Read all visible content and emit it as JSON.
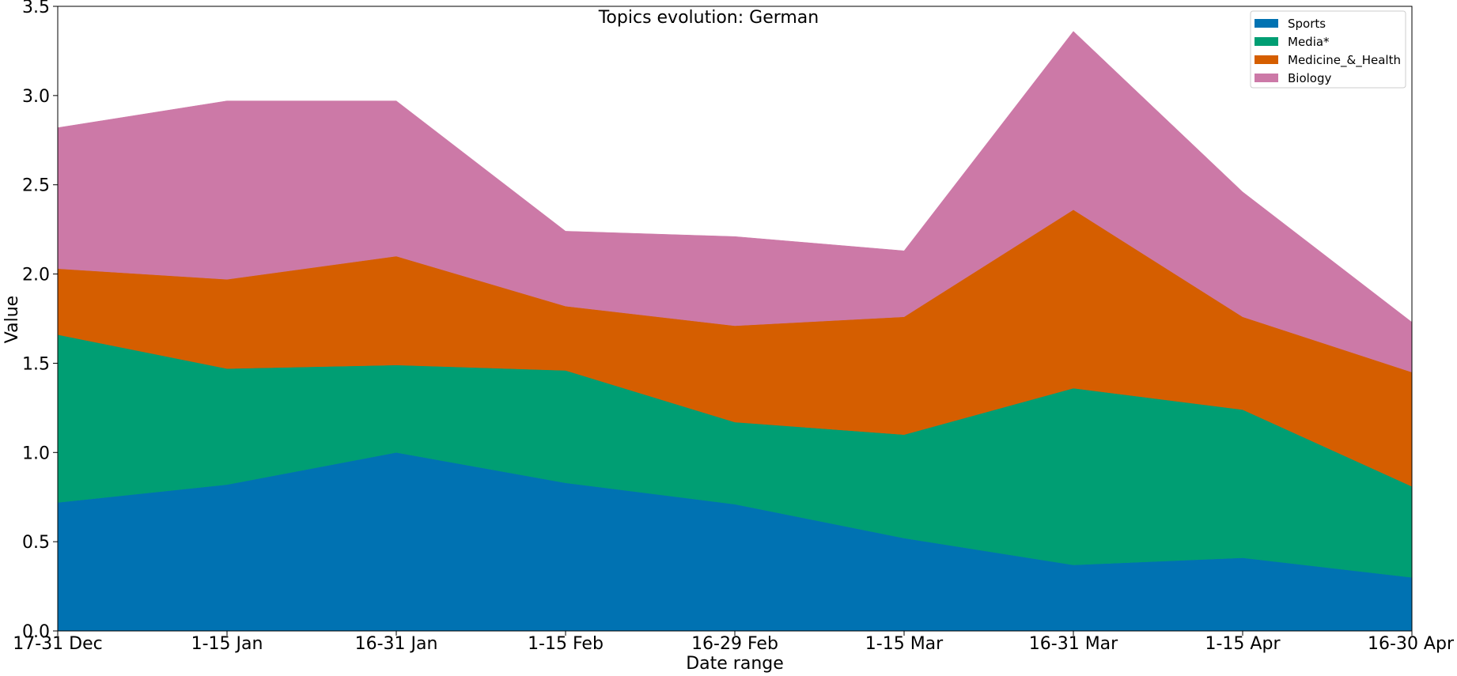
{
  "chart_data": {
    "type": "area",
    "stacked": true,
    "title": "Topics evolution: German",
    "xlabel": "Date range",
    "ylabel": "Value",
    "categories": [
      "17-31 Dec",
      "1-15 Jan",
      "16-31 Jan",
      "1-15 Feb",
      "16-29 Feb",
      "1-15 Mar",
      "16-31 Mar",
      "1-15 Apr",
      "16-30 Apr"
    ],
    "ylim": [
      0,
      3.5
    ],
    "yticks": [
      "0.0",
      "0.5",
      "1.0",
      "1.5",
      "2.0",
      "2.5",
      "3.0",
      "3.5"
    ],
    "legend_position": "top-right",
    "grid": false,
    "series": [
      {
        "name": "Sports",
        "color": "#0072b2",
        "values": [
          0.72,
          0.82,
          1.0,
          0.83,
          0.71,
          0.52,
          0.37,
          0.41,
          0.3
        ]
      },
      {
        "name": "Media*",
        "color": "#009e73",
        "values": [
          0.94,
          0.65,
          0.49,
          0.63,
          0.46,
          0.58,
          0.99,
          0.83,
          0.51
        ]
      },
      {
        "name": "Medicine_&_Health",
        "color": "#d55e00",
        "values": [
          0.37,
          0.5,
          0.61,
          0.36,
          0.54,
          0.66,
          1.0,
          0.52,
          0.64
        ]
      },
      {
        "name": "Biology",
        "color": "#cc79a7",
        "values": [
          0.79,
          1.0,
          0.87,
          0.42,
          0.5,
          0.37,
          1.0,
          0.7,
          0.28
        ]
      }
    ]
  }
}
